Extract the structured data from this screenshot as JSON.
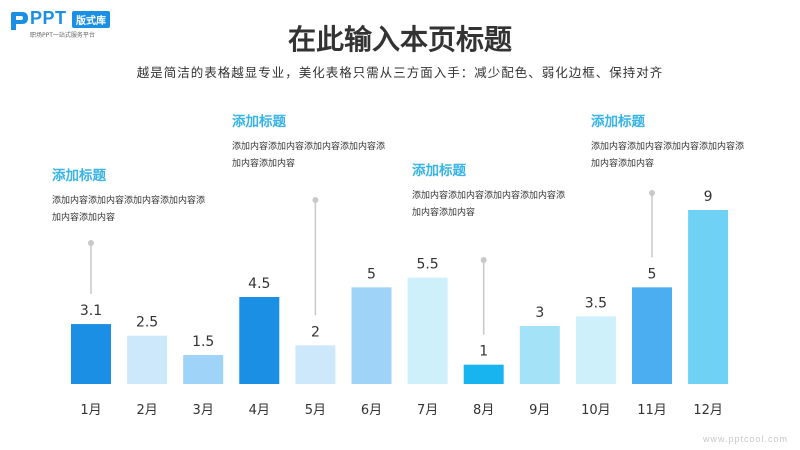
{
  "logo": {
    "brand": "PPT",
    "badge": "版式库",
    "tagline": "职场PPT一站式服务平台"
  },
  "title": "在此输入本页标题",
  "subtitle": "越是简洁的表格越显专业，美化表格只需从三方面入手：减少配色、弱化边框、保持对齐",
  "callouts": [
    {
      "title": "添加标题",
      "body": "添加内容添加内容添加内容添加内容添加内容添加内容",
      "month": "1月"
    },
    {
      "title": "添加标题",
      "body": "添加内容添加内容添加内容添加内容添加内容添加内容",
      "month": "5月"
    },
    {
      "title": "添加标题",
      "body": "添加内容添加内容添加内容添加内容添加内容添加内容",
      "month": "8月"
    },
    {
      "title": "添加标题",
      "body": "添加内容添加内容添加内容添加内容添加内容添加内容",
      "month": "11月"
    }
  ],
  "watermark": "www.pptcool.com",
  "chart_data": {
    "type": "bar",
    "categories": [
      "1月",
      "2月",
      "3月",
      "4月",
      "5月",
      "6月",
      "7月",
      "8月",
      "9月",
      "10月",
      "11月",
      "12月"
    ],
    "values": [
      3.1,
      2.5,
      1.5,
      4.5,
      2,
      5,
      5.5,
      1,
      3,
      3.5,
      5,
      9
    ],
    "value_labels": [
      "3.1",
      "2.5",
      "1.5",
      "4.5",
      "2",
      "5",
      "5.5",
      "1",
      "3",
      "3.5",
      "5",
      "9"
    ],
    "bar_colors": [
      "#1a8fe3",
      "#cde8fb",
      "#9fd3f7",
      "#1a8fe3",
      "#cde8fb",
      "#9fd3f7",
      "#cdf0fb",
      "#18b4f0",
      "#a4e2f8",
      "#cdf0fb",
      "#4aaef0",
      "#6fd2f5"
    ],
    "ylim": [
      0,
      9
    ],
    "grid": false,
    "legend": "none",
    "leader_line_color": "#c8c8c8"
  }
}
